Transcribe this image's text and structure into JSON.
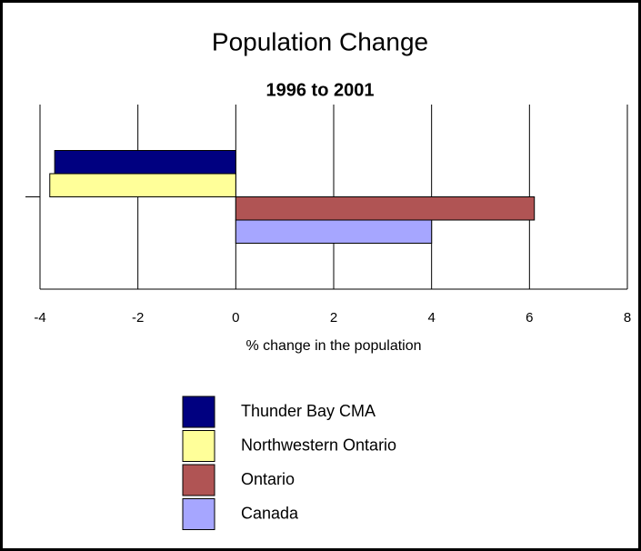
{
  "chart_data": {
    "type": "hbar",
    "title": "Population Change",
    "subtitle": "1996 to 2001",
    "x_label": "% change in the population",
    "categories": [
      null
    ],
    "series": [
      {
        "name": "Thunder Bay CMA",
        "color": "#000080",
        "values": [
          -3.7
        ]
      },
      {
        "name": "Northwestern Ontario",
        "color": "#ffff99",
        "values": [
          -3.8
        ]
      },
      {
        "name": "Ontario",
        "color": "#b05454",
        "values": [
          6.1
        ]
      },
      {
        "name": "Canada",
        "color": "#a6a6ff",
        "values": [
          4.0
        ]
      }
    ],
    "xlim": [
      -4,
      8
    ],
    "xticks": [
      -4,
      -2,
      0,
      2,
      4,
      6,
      8
    ],
    "grid": true
  }
}
